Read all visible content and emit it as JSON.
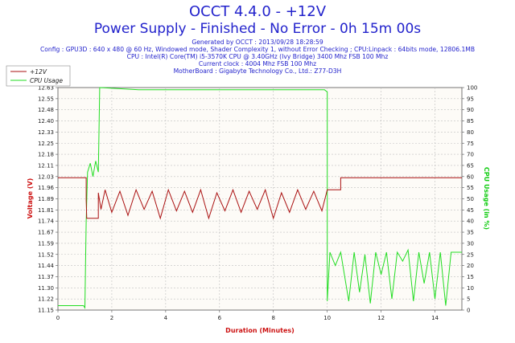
{
  "header": {
    "title": "OCCT 4.4.0 - +12V",
    "subtitle": "Power Supply - Finished - No Error - 0h 15m 00s",
    "info_lines": [
      "Generated by OCCT : 2013/09/28 18:28:59",
      "Config : GPU3D : 640 x 480 @ 60 Hz, Windowed mode, Shader Complexity 1, without Error Checking ; CPU:Linpack : 64bits mode, 12806.1MB",
      "CPU : Intel(R) Core(TM) i5-3570K CPU @ 3.40GHz (Ivy Bridge) 3400 Mhz FSB 100 Mhz",
      "Current clock : 4004 Mhz FSB 100 Mhz",
      "MotherBoard : Gigabyte Technology Co., Ltd.: Z77-D3H"
    ]
  },
  "colors": {
    "voltage": "#aa1111",
    "cpu": "#22dd22",
    "grid": "#bfbfbf",
    "title": "#2323cc"
  },
  "chart_data": {
    "type": "line",
    "xlabel": "Duration (Minutes)",
    "ylabel": "Voltage (V)",
    "ylabel2": "CPU Usage (in %)",
    "xlim": [
      0,
      15
    ],
    "ylim": [
      11.15,
      12.63
    ],
    "ylim2": [
      0,
      100
    ],
    "x_ticks": [
      0,
      2,
      4,
      6,
      8,
      10,
      12,
      14
    ],
    "x_tick_labels": [
      "0",
      "2",
      "4",
      "6",
      "8",
      "10",
      "12",
      "14"
    ],
    "y_tick_labels": [
      "11.15",
      "11.22",
      "11.30",
      "11.37",
      "11.44",
      "11.52",
      "11.59",
      "11.67",
      "11.74",
      "11.81",
      "11.89",
      "11.96",
      "12.03",
      "12.11",
      "12.18",
      "12.25",
      "12.33",
      "12.40",
      "12.48",
      "12.55",
      "12.63"
    ],
    "y2_tick_labels": [
      "0",
      "5",
      "10",
      "15",
      "20",
      "25",
      "30",
      "35",
      "40",
      "45",
      "50",
      "55",
      "60",
      "65",
      "70",
      "75",
      "80",
      "85",
      "90",
      "95",
      "100"
    ],
    "legend": [
      "+12V",
      "CPU Usage"
    ],
    "series": [
      {
        "name": "+12V",
        "points": [
          [
            0,
            12.03
          ],
          [
            1.05,
            12.03
          ],
          [
            1.05,
            11.88
          ],
          [
            1.07,
            11.76
          ],
          [
            1.5,
            11.76
          ],
          [
            1.5,
            11.93
          ],
          [
            1.6,
            11.82
          ],
          [
            1.75,
            11.95
          ],
          [
            2.0,
            11.8
          ],
          [
            2.3,
            11.94
          ],
          [
            2.6,
            11.78
          ],
          [
            2.9,
            11.95
          ],
          [
            3.2,
            11.82
          ],
          [
            3.5,
            11.94
          ],
          [
            3.8,
            11.76
          ],
          [
            4.1,
            11.95
          ],
          [
            4.4,
            11.81
          ],
          [
            4.7,
            11.94
          ],
          [
            5.0,
            11.8
          ],
          [
            5.3,
            11.95
          ],
          [
            5.6,
            11.76
          ],
          [
            5.9,
            11.93
          ],
          [
            6.2,
            11.81
          ],
          [
            6.5,
            11.95
          ],
          [
            6.8,
            11.8
          ],
          [
            7.1,
            11.94
          ],
          [
            7.4,
            11.82
          ],
          [
            7.7,
            11.95
          ],
          [
            8.0,
            11.76
          ],
          [
            8.3,
            11.93
          ],
          [
            8.6,
            11.8
          ],
          [
            8.9,
            11.95
          ],
          [
            9.2,
            11.82
          ],
          [
            9.5,
            11.94
          ],
          [
            9.8,
            11.81
          ],
          [
            10.0,
            11.95
          ],
          [
            10.5,
            11.95
          ],
          [
            10.5,
            12.03
          ],
          [
            15,
            12.03
          ]
        ]
      },
      {
        "name": "CPU Usage",
        "points": [
          [
            0,
            2
          ],
          [
            0.95,
            2
          ],
          [
            1.0,
            1
          ],
          [
            1.05,
            40
          ],
          [
            1.1,
            62
          ],
          [
            1.2,
            66
          ],
          [
            1.3,
            60
          ],
          [
            1.4,
            67
          ],
          [
            1.5,
            62
          ],
          [
            1.55,
            100
          ],
          [
            3,
            99
          ],
          [
            5,
            99
          ],
          [
            7,
            99
          ],
          [
            9,
            99
          ],
          [
            9.9,
            99
          ],
          [
            10.0,
            98
          ],
          [
            10.0,
            4
          ],
          [
            10.1,
            26
          ],
          [
            10.3,
            20
          ],
          [
            10.5,
            26
          ],
          [
            10.8,
            4
          ],
          [
            11.0,
            26
          ],
          [
            11.2,
            8
          ],
          [
            11.4,
            25
          ],
          [
            11.6,
            3
          ],
          [
            11.8,
            26
          ],
          [
            12.0,
            16
          ],
          [
            12.2,
            26
          ],
          [
            12.4,
            5
          ],
          [
            12.6,
            26
          ],
          [
            12.8,
            22
          ],
          [
            13.0,
            27
          ],
          [
            13.2,
            4
          ],
          [
            13.4,
            26
          ],
          [
            13.6,
            12
          ],
          [
            13.8,
            26
          ],
          [
            14.0,
            5
          ],
          [
            14.2,
            26
          ],
          [
            14.4,
            2
          ],
          [
            14.6,
            26
          ],
          [
            14.8,
            26
          ],
          [
            15,
            26
          ]
        ]
      }
    ]
  }
}
